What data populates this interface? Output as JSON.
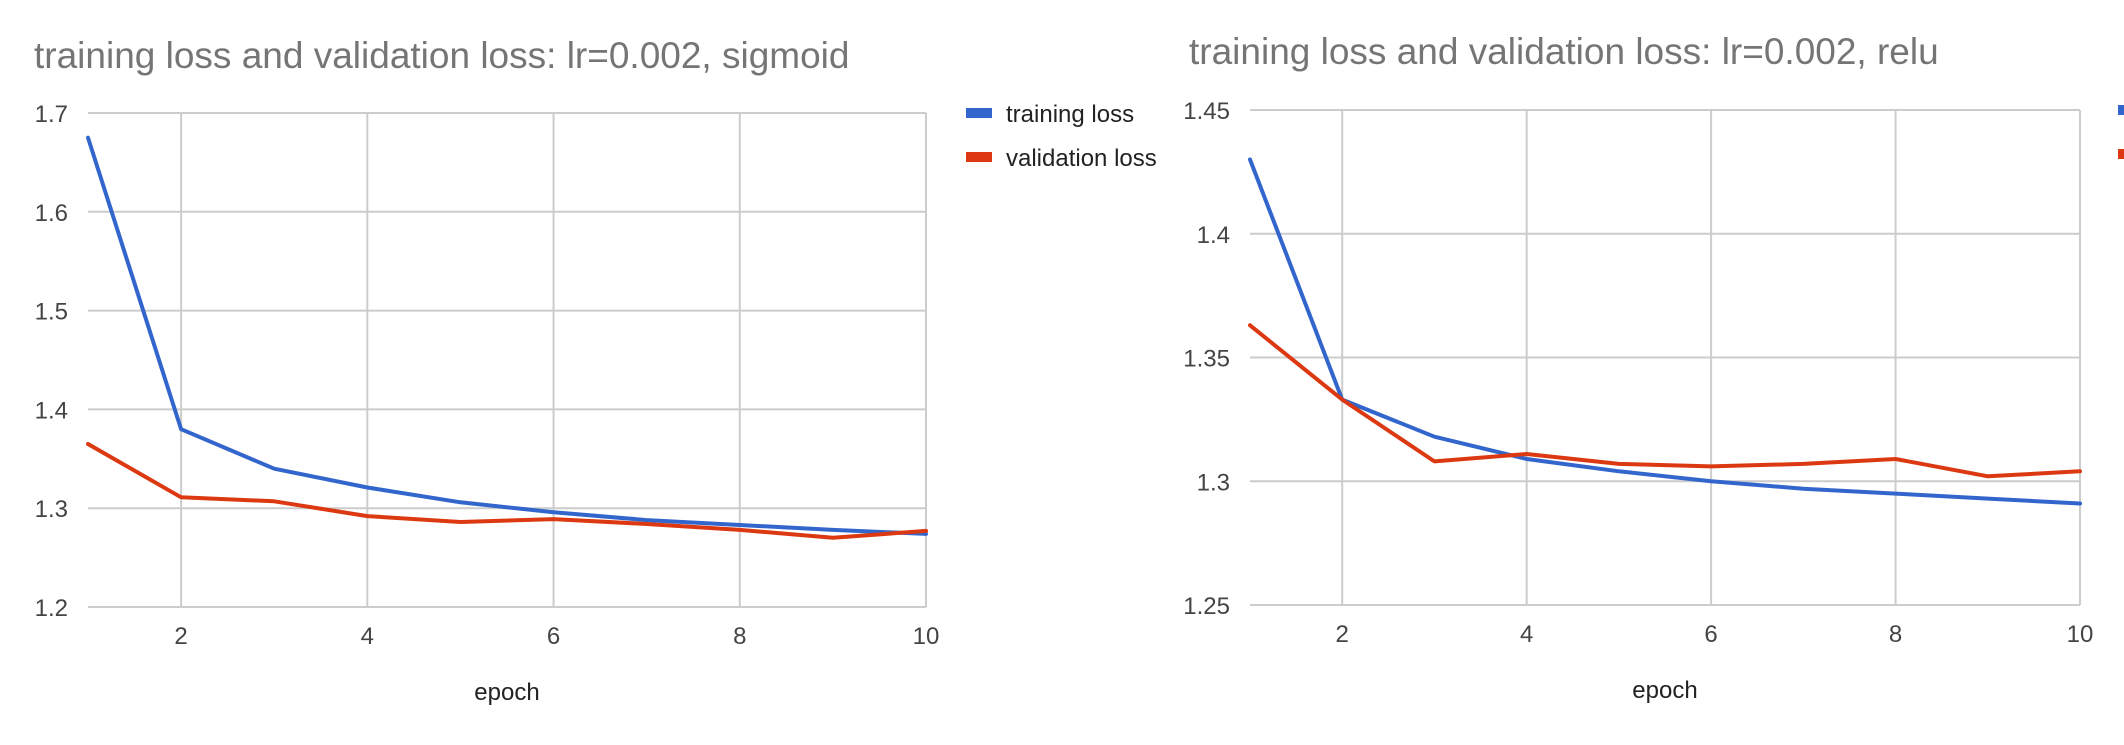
{
  "chart_data": [
    {
      "type": "line",
      "title": "training loss and validation loss:  lr=0.002, sigmoid",
      "xlabel": "epoch",
      "ylabel": "",
      "x": [
        1,
        2,
        3,
        4,
        5,
        6,
        7,
        8,
        9,
        10
      ],
      "xticks": [
        2,
        4,
        6,
        8,
        10
      ],
      "xlim": [
        1,
        10
      ],
      "ylim": [
        1.2,
        1.7
      ],
      "yticks": [
        1.2,
        1.3,
        1.4,
        1.5,
        1.6,
        1.7
      ],
      "grid": true,
      "legend_position": "right",
      "series": [
        {
          "name": "training loss",
          "color": "#3366cc",
          "values": [
            1.675,
            1.38,
            1.34,
            1.321,
            1.306,
            1.296,
            1.288,
            1.283,
            1.278,
            1.274
          ]
        },
        {
          "name": "validation loss",
          "color": "#dc3912",
          "values": [
            1.365,
            1.311,
            1.307,
            1.292,
            1.286,
            1.289,
            1.284,
            1.278,
            1.27,
            1.277
          ]
        }
      ]
    },
    {
      "type": "line",
      "title": "training loss and validation loss: lr=0.002, relu",
      "xlabel": "epoch",
      "ylabel": "",
      "x": [
        1,
        2,
        3,
        4,
        5,
        6,
        7,
        8,
        9,
        10
      ],
      "xticks": [
        2,
        4,
        6,
        8,
        10
      ],
      "xlim": [
        1,
        10
      ],
      "ylim": [
        1.25,
        1.45
      ],
      "yticks": [
        1.25,
        1.3,
        1.35,
        1.4,
        1.45
      ],
      "grid": true,
      "legend_position": "right",
      "series": [
        {
          "name": "",
          "color": "#3366cc",
          "values": [
            1.43,
            1.333,
            1.318,
            1.309,
            1.304,
            1.3,
            1.297,
            1.295,
            1.293,
            1.291
          ]
        },
        {
          "name": "",
          "color": "#dc3912",
          "values": [
            1.363,
            1.333,
            1.308,
            1.311,
            1.307,
            1.306,
            1.307,
            1.309,
            1.302,
            1.304
          ]
        }
      ]
    }
  ]
}
